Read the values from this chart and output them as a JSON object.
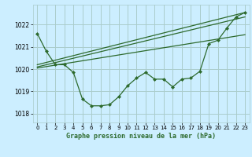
{
  "title": "Graphe pression niveau de la mer (hPa)",
  "bg_color": "#cceeff",
  "grid_color": "#aacccc",
  "line_color": "#2d6a2d",
  "xlim": [
    -0.5,
    23.5
  ],
  "ylim": [
    1017.6,
    1022.9
  ],
  "yticks": [
    1018,
    1019,
    1020,
    1021,
    1022
  ],
  "xticks": [
    0,
    1,
    2,
    3,
    4,
    5,
    6,
    7,
    8,
    9,
    10,
    11,
    12,
    13,
    14,
    15,
    16,
    17,
    18,
    19,
    20,
    21,
    22,
    23
  ],
  "data_x": [
    0,
    1,
    2,
    3,
    4,
    5,
    6,
    7,
    8,
    9,
    10,
    11,
    12,
    13,
    14,
    15,
    16,
    17,
    18,
    19,
    20,
    21,
    22,
    23
  ],
  "data_y": [
    1021.6,
    1020.8,
    1020.2,
    1020.2,
    1019.85,
    1018.65,
    1018.35,
    1018.35,
    1018.4,
    1018.75,
    1019.25,
    1019.6,
    1019.85,
    1019.55,
    1019.55,
    1019.2,
    1019.55,
    1019.6,
    1019.9,
    1021.15,
    1021.3,
    1021.85,
    1022.35,
    1022.55
  ],
  "trend1_x": [
    0,
    23
  ],
  "trend1_y": [
    1020.2,
    1022.55
  ],
  "trend2_x": [
    0,
    23
  ],
  "trend2_y": [
    1020.1,
    1022.35
  ],
  "trend3_x": [
    0,
    23
  ],
  "trend3_y": [
    1020.05,
    1021.55
  ]
}
